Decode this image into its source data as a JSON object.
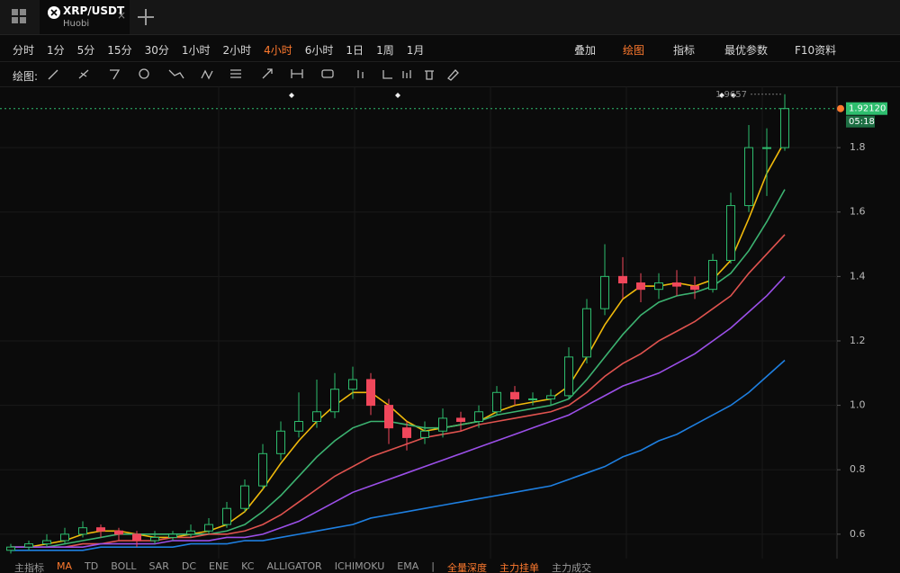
{
  "header": {
    "symbol": "XRP/USDT",
    "exchange": "Huobi"
  },
  "periods": [
    "分时",
    "1分",
    "5分",
    "15分",
    "30分",
    "1小时",
    "2小时",
    "4小时",
    "6小时",
    "1日",
    "1周",
    "1月"
  ],
  "active_period": 7,
  "tools": [
    "叠加",
    "绘图",
    "指标",
    "最优参数",
    "F10资料"
  ],
  "active_tool": 1,
  "drawing_label": "绘图:",
  "bottom": {
    "label": "主指标",
    "indicators": [
      "MA",
      "TD",
      "BOLL",
      "SAR",
      "DC",
      "ENE",
      "KC",
      "ALLIGATOR",
      "ICHIMOKU",
      "EMA"
    ],
    "active_indicator": 0,
    "separator": "|",
    "depth": [
      "全量深度",
      "主力挂单",
      "主力成交"
    ],
    "active_depth": [
      0,
      1
    ]
  },
  "highlight_color": "#ff7a2e",
  "chart_data": {
    "type": "candlestick",
    "ylim": [
      0.527,
      1.979
    ],
    "yticks": [
      0.6,
      0.8,
      {
        "value": 1,
        "label": "1.0"
      },
      1.2,
      1.4,
      1.6,
      1.8
    ],
    "grid": true,
    "up_color": "#2ebd6e",
    "down_color": "#f0475b",
    "open": [
      0.55,
      0.56,
      0.57,
      0.58,
      0.6,
      0.62,
      0.61,
      0.6,
      0.58,
      0.59,
      0.6,
      0.61,
      0.63,
      0.68,
      0.75,
      0.85,
      0.92,
      0.95,
      0.98,
      1.05,
      1.08,
      1.0,
      0.93,
      0.9,
      0.92,
      0.96,
      0.95,
      0.98,
      1.04,
      1.02,
      1.02,
      1.03,
      1.15,
      1.3,
      1.4,
      1.38,
      1.36,
      1.38,
      1.37,
      1.36,
      1.45,
      1.62,
      1.8,
      1.8
    ],
    "high": [
      0.57,
      0.58,
      0.6,
      0.62,
      0.64,
      0.63,
      0.62,
      0.61,
      0.61,
      0.61,
      0.63,
      0.65,
      0.7,
      0.77,
      0.88,
      0.95,
      1.04,
      1.08,
      1.1,
      1.12,
      1.1,
      1.02,
      0.95,
      0.95,
      0.99,
      0.98,
      1.0,
      1.06,
      1.06,
      1.04,
      1.05,
      1.18,
      1.33,
      1.5,
      1.46,
      1.41,
      1.41,
      1.42,
      1.4,
      1.47,
      1.66,
      1.87,
      1.86,
      1.9657
    ],
    "low": [
      0.54,
      0.55,
      0.56,
      0.57,
      0.59,
      0.59,
      0.58,
      0.56,
      0.57,
      0.58,
      0.59,
      0.6,
      0.62,
      0.67,
      0.74,
      0.83,
      0.9,
      0.93,
      0.96,
      1.02,
      0.97,
      0.88,
      0.86,
      0.88,
      0.9,
      0.92,
      0.93,
      0.97,
      1.0,
      1.0,
      1.0,
      1.02,
      1.13,
      1.28,
      1.33,
      1.32,
      1.33,
      1.34,
      1.33,
      1.35,
      1.44,
      1.6,
      1.65,
      1.79
    ],
    "close": [
      0.56,
      0.57,
      0.58,
      0.6,
      0.62,
      0.61,
      0.6,
      0.58,
      0.59,
      0.6,
      0.61,
      0.63,
      0.68,
      0.75,
      0.85,
      0.92,
      0.95,
      0.98,
      1.05,
      1.08,
      1.0,
      0.93,
      0.9,
      0.92,
      0.96,
      0.95,
      0.98,
      1.04,
      1.02,
      1.02,
      1.03,
      1.15,
      1.3,
      1.4,
      1.38,
      1.36,
      1.38,
      1.37,
      1.36,
      1.45,
      1.62,
      1.8,
      1.8,
      1.9212
    ],
    "series": [
      {
        "color": "#f0b90b",
        "values": [
          0.56,
          0.56,
          0.57,
          0.58,
          0.6,
          0.61,
          0.61,
          0.6,
          0.59,
          0.59,
          0.6,
          0.61,
          0.63,
          0.67,
          0.74,
          0.82,
          0.89,
          0.95,
          1.0,
          1.04,
          1.04,
          1.0,
          0.95,
          0.92,
          0.93,
          0.94,
          0.95,
          0.98,
          1.0,
          1.01,
          1.02,
          1.06,
          1.15,
          1.25,
          1.33,
          1.37,
          1.37,
          1.38,
          1.37,
          1.39,
          1.45,
          1.58,
          1.72,
          1.82
        ]
      },
      {
        "color": "#3cb371",
        "values": [
          0.56,
          0.56,
          0.56,
          0.57,
          0.58,
          0.59,
          0.6,
          0.6,
          0.6,
          0.6,
          0.6,
          0.6,
          0.61,
          0.63,
          0.67,
          0.72,
          0.78,
          0.84,
          0.89,
          0.93,
          0.95,
          0.95,
          0.94,
          0.93,
          0.93,
          0.94,
          0.95,
          0.97,
          0.98,
          0.99,
          1.0,
          1.02,
          1.08,
          1.15,
          1.22,
          1.28,
          1.32,
          1.34,
          1.35,
          1.37,
          1.41,
          1.48,
          1.57,
          1.67
        ]
      },
      {
        "color": "#e0534f",
        "values": [
          0.56,
          0.56,
          0.56,
          0.56,
          0.57,
          0.57,
          0.58,
          0.58,
          0.58,
          0.59,
          0.59,
          0.6,
          0.6,
          0.61,
          0.63,
          0.66,
          0.7,
          0.74,
          0.78,
          0.81,
          0.84,
          0.86,
          0.88,
          0.9,
          0.91,
          0.92,
          0.94,
          0.95,
          0.96,
          0.97,
          0.98,
          1.0,
          1.04,
          1.09,
          1.13,
          1.16,
          1.2,
          1.23,
          1.26,
          1.3,
          1.34,
          1.41,
          1.47,
          1.53
        ]
      },
      {
        "color": "#9b4fe8",
        "values": [
          0.56,
          0.56,
          0.56,
          0.56,
          0.56,
          0.57,
          0.57,
          0.57,
          0.57,
          0.58,
          0.58,
          0.58,
          0.59,
          0.59,
          0.6,
          0.62,
          0.64,
          0.67,
          0.7,
          0.73,
          0.75,
          0.77,
          0.79,
          0.81,
          0.83,
          0.85,
          0.87,
          0.89,
          0.91,
          0.93,
          0.95,
          0.97,
          1.0,
          1.03,
          1.06,
          1.08,
          1.1,
          1.13,
          1.16,
          1.2,
          1.24,
          1.29,
          1.34,
          1.4
        ]
      },
      {
        "color": "#1e7fe0",
        "values": [
          0.55,
          0.55,
          0.55,
          0.55,
          0.55,
          0.56,
          0.56,
          0.56,
          0.56,
          0.56,
          0.57,
          0.57,
          0.57,
          0.58,
          0.58,
          0.59,
          0.6,
          0.61,
          0.62,
          0.63,
          0.65,
          0.66,
          0.67,
          0.68,
          0.69,
          0.7,
          0.71,
          0.72,
          0.73,
          0.74,
          0.75,
          0.77,
          0.79,
          0.81,
          0.84,
          0.86,
          0.89,
          0.91,
          0.94,
          0.97,
          1.0,
          1.04,
          1.09,
          1.14
        ]
      }
    ],
    "current_price": {
      "value": 1.9212,
      "label": "1.92120"
    },
    "countdown": "05:18",
    "high_marker": 1.9657,
    "current_color": "#2ebd6e"
  }
}
